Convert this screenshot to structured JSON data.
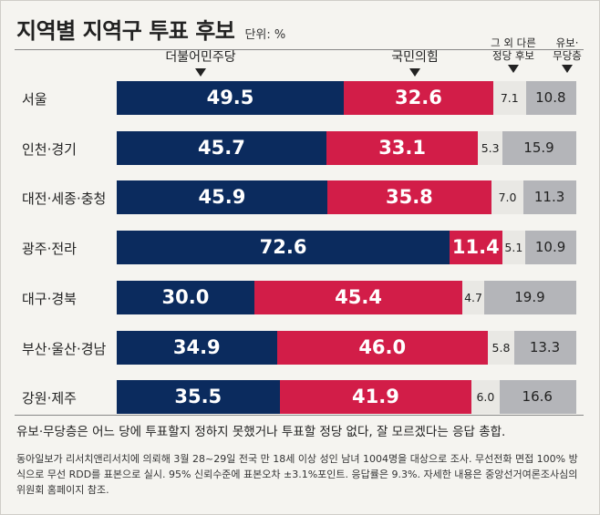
{
  "title": "지역별 지역구 투표 후보",
  "unit": "단위: %",
  "colors": {
    "dem": "#0b2b5e",
    "ppp": "#d21d48",
    "other": "#e9e8e4",
    "undecided": "#b4b5b9"
  },
  "legend": {
    "dem": "더불어민주당",
    "ppp": "국민의힘",
    "other": [
      "그 외 다른",
      "정당 후보"
    ],
    "undecided": [
      "유보·",
      "무당층"
    ]
  },
  "chart_data": {
    "type": "bar",
    "stacked": true,
    "orientation": "horizontal",
    "title": "지역별 지역구 투표 후보",
    "unit": "단위: %",
    "categories": [
      "서울",
      "인천·경기",
      "대전·세종·충청",
      "광주·전라",
      "대구·경북",
      "부산·울산·경남",
      "강원·제주"
    ],
    "series": [
      {
        "name": "더불어민주당",
        "values": [
          49.5,
          45.7,
          45.9,
          72.6,
          30.0,
          34.9,
          35.5
        ]
      },
      {
        "name": "국민의힘",
        "values": [
          32.6,
          33.1,
          35.8,
          11.4,
          45.4,
          46.0,
          41.9
        ]
      },
      {
        "name": "그 외 다른 정당 후보",
        "values": [
          7.1,
          5.3,
          7.0,
          5.1,
          4.7,
          5.8,
          6.0
        ]
      },
      {
        "name": "유보·무당층",
        "values": [
          10.8,
          15.9,
          11.3,
          10.9,
          19.9,
          13.3,
          16.6
        ]
      }
    ]
  },
  "footnote": "유보·무당층은 어느 당에 투표할지 정하지 못했거나 투표할 정당 없다, 잘 모르겠다는 응답 총합.",
  "source": "동아일보가 리서치앤리서치에 의뢰해 3월 28~29일 전국 만 18세 이상 성인 남녀 1004명을 대상으로 조사. 무선전화 면접 100% 방식으로 무선 RDD를 표본으로 실시. 95% 신뢰수준에 표본오차 ±3.1%포인트. 응답률은 9.3%. 자세한 내용은 중앙선거여론조사심의위원회 홈페이지 참조."
}
